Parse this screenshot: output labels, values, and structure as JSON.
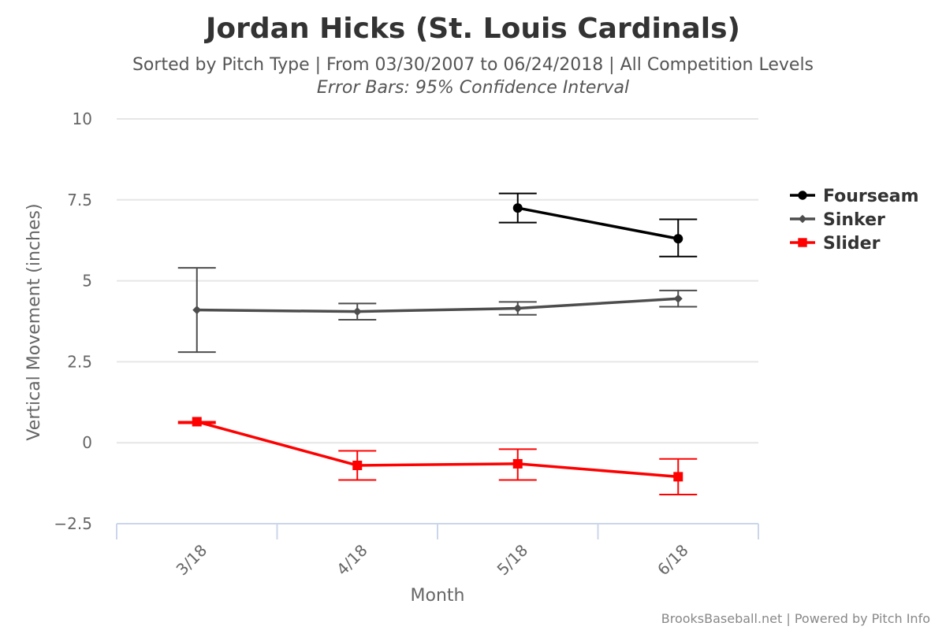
{
  "chart_data": {
    "type": "line",
    "title": "Jordan Hicks (St. Louis Cardinals)",
    "subtitle": "Sorted by Pitch Type | From 03/30/2007 to 06/24/2018 | All Competition Levels",
    "subtitle2": "Error Bars: 95% Confidence Interval",
    "xlabel": "Month",
    "ylabel": "Vertical Movement (inches)",
    "categories": [
      "3/18",
      "4/18",
      "5/18",
      "6/18"
    ],
    "ylim": [
      -2.5,
      10
    ],
    "yticks": [
      -2.5,
      0,
      2.5,
      5,
      7.5,
      10
    ],
    "ytick_labels": [
      "−2.5",
      "0",
      "2.5",
      "5",
      "7.5",
      "10"
    ],
    "grid": true,
    "legend_position": "right",
    "credits": "BrooksBaseball.net | Powered by Pitch Info",
    "series": [
      {
        "name": "Fourseam",
        "color": "#000000",
        "marker": "circle",
        "values": [
          null,
          null,
          7.25,
          6.3
        ],
        "err_low": [
          null,
          null,
          6.8,
          5.75
        ],
        "err_high": [
          null,
          null,
          7.7,
          6.9
        ]
      },
      {
        "name": "Sinker",
        "color": "#4d4d4d",
        "marker": "diamond",
        "values": [
          4.1,
          4.05,
          4.15,
          4.45
        ],
        "err_low": [
          2.8,
          3.8,
          3.95,
          4.2
        ],
        "err_high": [
          5.4,
          4.3,
          4.35,
          4.7
        ]
      },
      {
        "name": "Slider",
        "color": "#ff0000",
        "marker": "square",
        "values": [
          0.65,
          -0.7,
          -0.65,
          -1.05
        ],
        "err_low": [
          0.6,
          -1.15,
          -1.15,
          -1.6
        ],
        "err_high": [
          0.65,
          -0.25,
          -0.2,
          -0.5
        ]
      }
    ]
  }
}
